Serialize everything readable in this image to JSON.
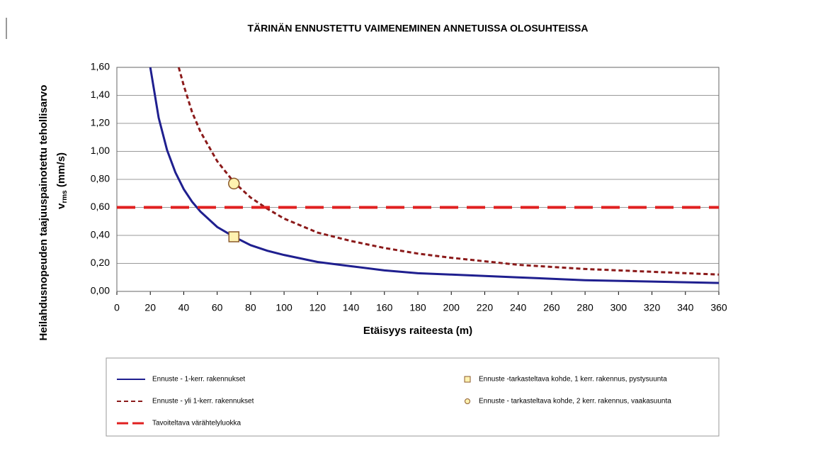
{
  "chart_data": {
    "type": "line",
    "title": "TÄRINÄN ENNUSTETTU VAIMENEMINEN ANNETUISSA OLOSUHTEISSA",
    "x_label": "Etäisyys raiteesta (m)",
    "y_label": [
      "Heilahdusnopeuden taajuuspainotettu tehollisarvo",
      "v",
      "rms",
      " (mm/s)"
    ],
    "xlim": [
      0,
      360
    ],
    "xticks": [
      0,
      20,
      40,
      60,
      80,
      100,
      120,
      140,
      160,
      180,
      200,
      220,
      240,
      260,
      280,
      300,
      320,
      340,
      360
    ],
    "ylim": [
      0,
      1.6
    ],
    "yticks": [
      {
        "value": 0,
        "label": "0,00"
      },
      {
        "value": 0.2,
        "label": "0,20"
      },
      {
        "value": 0.4,
        "label": "0,40"
      },
      {
        "value": 0.6,
        "label": "0,60"
      },
      {
        "value": 0.8,
        "label": "0,80"
      },
      {
        "value": 1.0,
        "label": "1,00"
      },
      {
        "value": 1.2,
        "label": "1,20"
      },
      {
        "value": 1.4,
        "label": "1,40"
      },
      {
        "value": 1.6,
        "label": "1,60"
      }
    ],
    "grid": true,
    "series": [
      {
        "name": "Ennuste - 1-kerr. rakennukset",
        "color": "#1f1f8f",
        "style": "solid",
        "x": [
          20,
          25,
          30,
          35,
          40,
          45,
          50,
          60,
          70,
          80,
          90,
          100,
          120,
          140,
          160,
          180,
          200,
          240,
          280,
          320,
          360
        ],
        "values": [
          1.6,
          1.24,
          1.01,
          0.85,
          0.73,
          0.64,
          0.57,
          0.46,
          0.39,
          0.33,
          0.29,
          0.26,
          0.21,
          0.18,
          0.15,
          0.13,
          0.12,
          0.1,
          0.08,
          0.07,
          0.06
        ]
      },
      {
        "name": "Ennuste - yli 1-kerr. rakennukset",
        "color": "#8b1a1a",
        "style": "dotted",
        "x": [
          37,
          40,
          45,
          50,
          60,
          70,
          80,
          90,
          100,
          120,
          140,
          160,
          180,
          200,
          240,
          280,
          320,
          360
        ],
        "values": [
          1.6,
          1.47,
          1.28,
          1.14,
          0.93,
          0.78,
          0.67,
          0.59,
          0.52,
          0.42,
          0.36,
          0.31,
          0.27,
          0.24,
          0.19,
          0.16,
          0.14,
          0.12
        ]
      },
      {
        "name": "Tavoiteltava värähtelyluokka",
        "color": "#e02020",
        "style": "dashed",
        "x": [
          0,
          360
        ],
        "values": [
          0.6,
          0.6
        ]
      },
      {
        "name": "Ennuste -tarkasteltava kohde, 1 kerr. rakennus, pystysuunta",
        "color": "#fff2b0",
        "edge": "#8b5a2b",
        "style": "square",
        "x": [
          70
        ],
        "values": [
          0.39
        ]
      },
      {
        "name": "Ennuste - tarkasteltava kohde, 2 kerr. rakennus, vaakasuunta",
        "color": "#fff2b0",
        "edge": "#8b5a2b",
        "style": "circle",
        "x": [
          70
        ],
        "values": [
          0.77
        ]
      }
    ]
  }
}
